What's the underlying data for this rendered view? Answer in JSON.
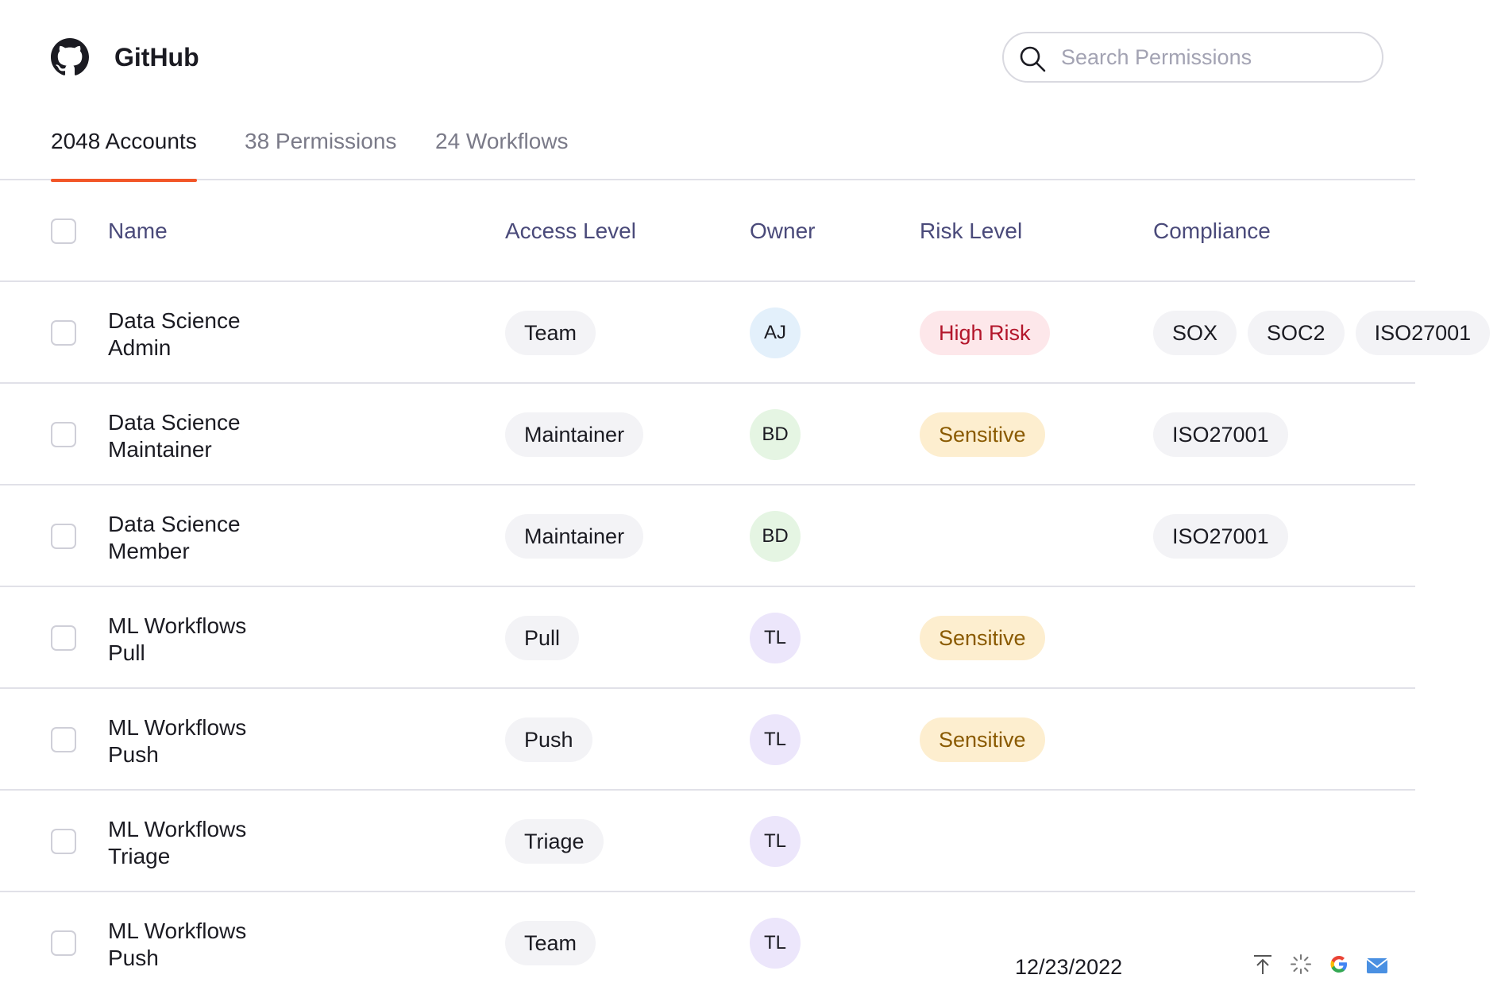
{
  "app": {
    "title": "GitHub",
    "logo_icon": "github-icon"
  },
  "search": {
    "placeholder": "Search Permissions",
    "value": ""
  },
  "tabs": [
    {
      "label": "2048 Accounts",
      "active": true
    },
    {
      "label": "38 Permissions",
      "active": false
    },
    {
      "label": "24 Workflows",
      "active": false
    }
  ],
  "table": {
    "headers": {
      "name": "Name",
      "access": "Access Level",
      "owner": "Owner",
      "risk": "Risk Level",
      "compliance": "Compliance"
    },
    "rows": [
      {
        "name_line1": "Data Science",
        "name_line2": "Admin",
        "access": "Team",
        "owner": "AJ",
        "risk": "High Risk",
        "compliance": [
          "SOX",
          "SOC2",
          "ISO27001"
        ]
      },
      {
        "name_line1": "Data Science",
        "name_line2": "Maintainer",
        "access": "Maintainer",
        "owner": "BD",
        "risk": "Sensitive",
        "compliance": [
          "ISO27001"
        ]
      },
      {
        "name_line1": "Data Science",
        "name_line2": "Member",
        "access": "Maintainer",
        "owner": "BD",
        "risk": "",
        "compliance": [
          "ISO27001"
        ]
      },
      {
        "name_line1": "ML Workflows",
        "name_line2": "Pull",
        "access": "Pull",
        "owner": "TL",
        "risk": "Sensitive",
        "compliance": []
      },
      {
        "name_line1": "ML Workflows",
        "name_line2": "Push",
        "access": "Push",
        "owner": "TL",
        "risk": "Sensitive",
        "compliance": []
      },
      {
        "name_line1": "ML Workflows",
        "name_line2": "Triage",
        "access": "Triage",
        "owner": "TL",
        "risk": "",
        "compliance": []
      },
      {
        "name_line1": "ML Workflows",
        "name_line2": "Push",
        "access": "Team",
        "owner": "TL",
        "risk": "",
        "compliance": []
      }
    ]
  },
  "colors": {
    "accent": "#f25527",
    "avatar_aj": "#e3f0fb",
    "avatar_bd": "#e5f5e3",
    "avatar_tl": "#ece6fb"
  },
  "footer": {
    "date": "12/23/2022",
    "icons": [
      "upload-icon",
      "loading-icon",
      "google-icon",
      "mail-icon"
    ]
  }
}
